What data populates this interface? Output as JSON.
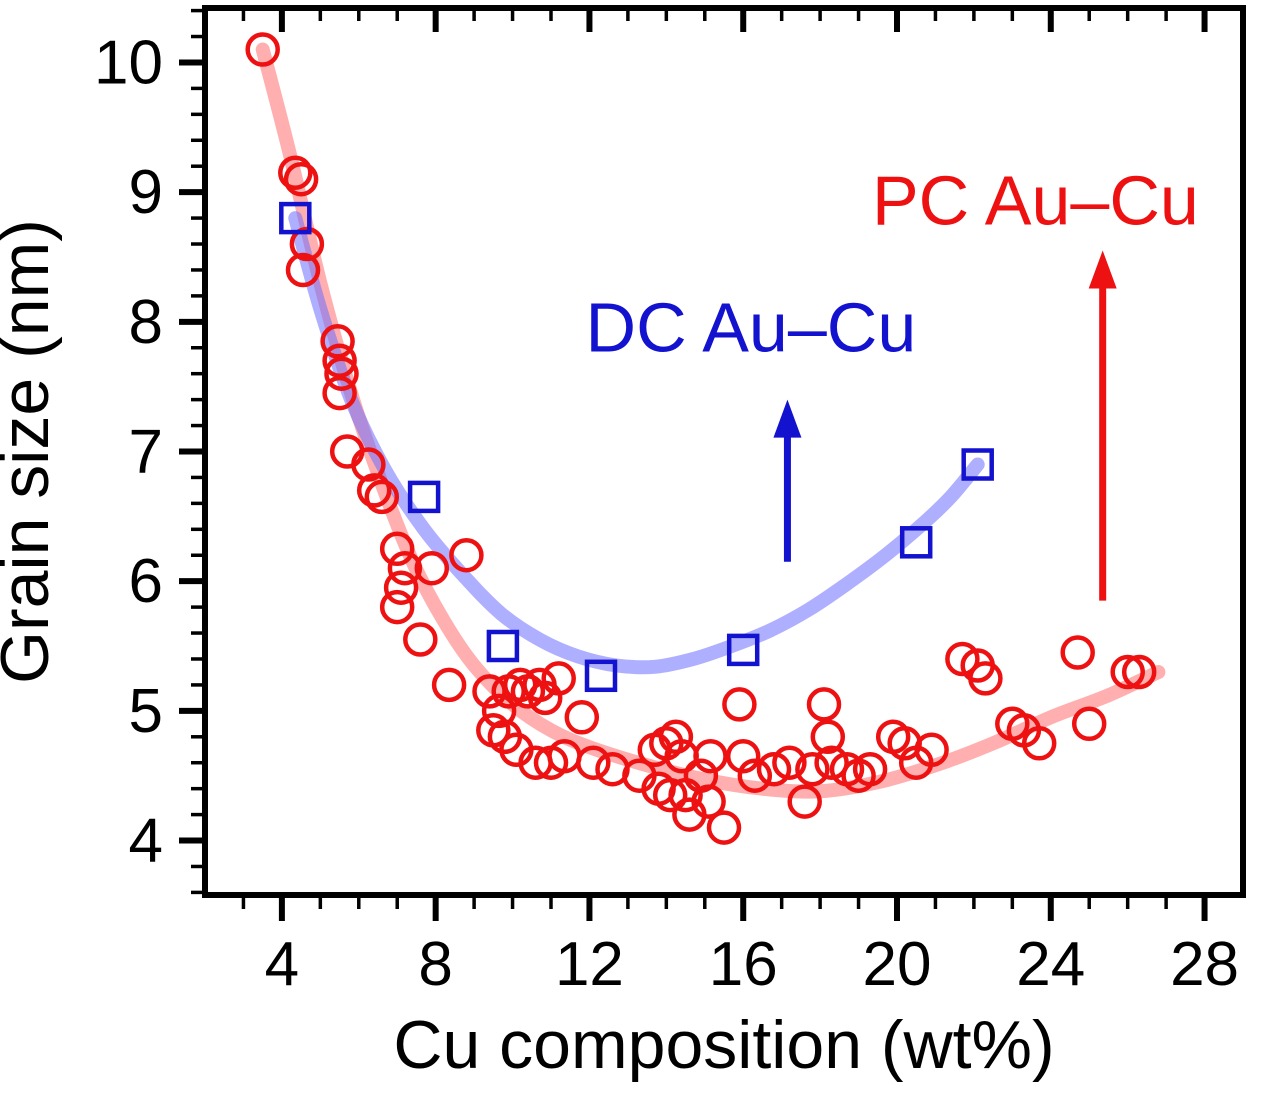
{
  "figure": {
    "background": "#ffffff",
    "axis_color": "#000000"
  },
  "chart_data": {
    "type": "scatter",
    "title": "",
    "xlabel": "Cu composition (wt%)",
    "ylabel": "Grain size (nm)",
    "xlim": [
      2,
      29
    ],
    "ylim": [
      3.58,
      10.42
    ],
    "x_major_ticks": [
      4,
      8,
      12,
      16,
      20,
      24,
      28
    ],
    "x_minor_step": 1,
    "y_major_ticks": [
      4,
      5,
      6,
      7,
      8,
      9,
      10
    ],
    "y_minor_step": 0.2,
    "grid": false,
    "legend_position": "inline-annotations",
    "series": [
      {
        "name": "PC Au–Cu",
        "marker": "circle",
        "marker_color": "#ee1111",
        "trend_color": "rgba(255,95,95,0.5)",
        "points": [
          [
            3.5,
            10.1
          ],
          [
            4.35,
            9.15
          ],
          [
            4.5,
            9.1
          ],
          [
            4.65,
            8.6
          ],
          [
            4.55,
            8.4
          ],
          [
            5.45,
            7.85
          ],
          [
            5.5,
            7.7
          ],
          [
            5.55,
            7.6
          ],
          [
            5.5,
            7.45
          ],
          [
            5.7,
            7.0
          ],
          [
            6.25,
            6.9
          ],
          [
            6.4,
            6.7
          ],
          [
            6.6,
            6.65
          ],
          [
            7.0,
            6.25
          ],
          [
            7.2,
            6.1
          ],
          [
            7.0,
            5.8
          ],
          [
            7.1,
            5.95
          ],
          [
            7.6,
            5.55
          ],
          [
            7.9,
            6.1
          ],
          [
            8.35,
            5.2
          ],
          [
            8.8,
            6.2
          ],
          [
            9.4,
            5.15
          ],
          [
            9.5,
            4.85
          ],
          [
            9.65,
            5.0
          ],
          [
            9.8,
            4.8
          ],
          [
            9.9,
            5.15
          ],
          [
            10.2,
            5.2
          ],
          [
            10.1,
            4.7
          ],
          [
            10.4,
            5.15
          ],
          [
            10.6,
            4.6
          ],
          [
            10.7,
            5.2
          ],
          [
            10.85,
            5.1
          ],
          [
            11.0,
            4.6
          ],
          [
            11.2,
            5.25
          ],
          [
            11.35,
            4.65
          ],
          [
            11.8,
            4.95
          ],
          [
            12.1,
            4.6
          ],
          [
            12.6,
            4.55
          ],
          [
            13.3,
            4.5
          ],
          [
            13.7,
            4.7
          ],
          [
            13.8,
            4.4
          ],
          [
            14.0,
            4.75
          ],
          [
            14.1,
            4.35
          ],
          [
            14.25,
            4.8
          ],
          [
            14.4,
            4.65
          ],
          [
            14.5,
            4.35
          ],
          [
            14.6,
            4.2
          ],
          [
            14.9,
            4.5
          ],
          [
            15.1,
            4.3
          ],
          [
            15.15,
            4.65
          ],
          [
            15.5,
            4.1
          ],
          [
            15.9,
            5.05
          ],
          [
            16.0,
            4.65
          ],
          [
            16.3,
            4.5
          ],
          [
            16.8,
            4.55
          ],
          [
            17.2,
            4.6
          ],
          [
            17.6,
            4.3
          ],
          [
            17.8,
            4.55
          ],
          [
            18.1,
            5.05
          ],
          [
            18.2,
            4.8
          ],
          [
            18.3,
            4.6
          ],
          [
            18.7,
            4.55
          ],
          [
            19.0,
            4.5
          ],
          [
            19.3,
            4.55
          ],
          [
            19.9,
            4.8
          ],
          [
            20.2,
            4.75
          ],
          [
            20.5,
            4.6
          ],
          [
            20.9,
            4.7
          ],
          [
            21.7,
            5.4
          ],
          [
            22.1,
            5.35
          ],
          [
            22.3,
            5.25
          ],
          [
            23.0,
            4.9
          ],
          [
            23.3,
            4.85
          ],
          [
            23.7,
            4.75
          ],
          [
            24.7,
            5.45
          ],
          [
            25.0,
            4.9
          ],
          [
            26.0,
            5.3
          ],
          [
            26.3,
            5.3
          ]
        ],
        "trend": [
          [
            3.5,
            10.1
          ],
          [
            4.2,
            9.3
          ],
          [
            5.0,
            8.3
          ],
          [
            5.8,
            7.45
          ],
          [
            6.6,
            6.75
          ],
          [
            7.4,
            6.15
          ],
          [
            8.2,
            5.7
          ],
          [
            9.0,
            5.35
          ],
          [
            10.0,
            5.05
          ],
          [
            11.0,
            4.85
          ],
          [
            12.0,
            4.72
          ],
          [
            13.5,
            4.58
          ],
          [
            15.0,
            4.47
          ],
          [
            16.5,
            4.4
          ],
          [
            18.0,
            4.38
          ],
          [
            19.5,
            4.45
          ],
          [
            21.0,
            4.58
          ],
          [
            22.5,
            4.75
          ],
          [
            24.0,
            4.95
          ],
          [
            25.5,
            5.12
          ],
          [
            26.8,
            5.3
          ]
        ]
      },
      {
        "name": "DC Au–Cu",
        "marker": "square",
        "marker_color": "#1212cf",
        "trend_color": "rgba(110,110,255,0.55)",
        "points": [
          [
            4.35,
            8.8
          ],
          [
            7.7,
            6.65
          ],
          [
            9.75,
            5.5
          ],
          [
            12.3,
            5.27
          ],
          [
            16.0,
            5.47
          ],
          [
            20.5,
            6.3
          ],
          [
            22.1,
            6.9
          ]
        ],
        "trend": [
          [
            4.35,
            8.8
          ],
          [
            5.0,
            8.1
          ],
          [
            5.8,
            7.4
          ],
          [
            6.7,
            6.85
          ],
          [
            7.7,
            6.4
          ],
          [
            8.7,
            6.05
          ],
          [
            9.7,
            5.75
          ],
          [
            10.7,
            5.55
          ],
          [
            11.7,
            5.42
          ],
          [
            12.7,
            5.35
          ],
          [
            13.7,
            5.34
          ],
          [
            14.7,
            5.4
          ],
          [
            15.7,
            5.5
          ],
          [
            16.7,
            5.62
          ],
          [
            17.7,
            5.78
          ],
          [
            18.7,
            5.98
          ],
          [
            19.7,
            6.2
          ],
          [
            20.7,
            6.45
          ],
          [
            21.4,
            6.65
          ],
          [
            22.1,
            6.9
          ]
        ]
      }
    ],
    "annotations": [
      {
        "text": "DC Au–Cu",
        "x": 16.2,
        "y": 7.77,
        "color": "#1212cf"
      },
      {
        "text": "PC Au–Cu",
        "x": 23.6,
        "y": 8.75,
        "color": "#ee1111"
      }
    ],
    "arrows": [
      {
        "x": 17.15,
        "y_from": 6.15,
        "y_to": 7.4,
        "color": "#1212cf"
      },
      {
        "x": 25.35,
        "y_from": 5.85,
        "y_to": 8.55,
        "color": "#ee1111"
      }
    ]
  }
}
